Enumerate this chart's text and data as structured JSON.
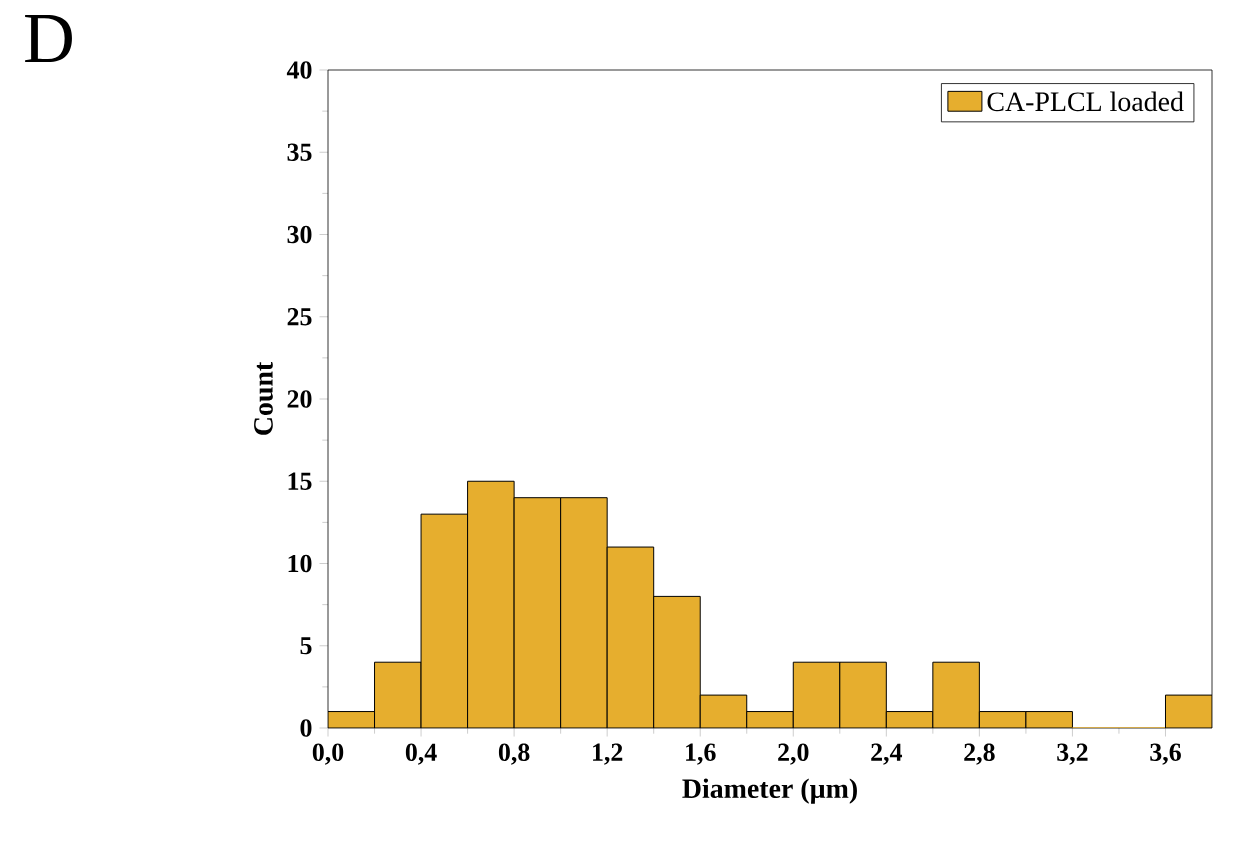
{
  "chart_data": {
    "type": "histogram",
    "xlabel": "Diameter (µm)",
    "ylabel": "Count",
    "annotations": [
      "D"
    ],
    "bins": [
      0,
      0.2,
      0.4,
      0.6,
      0.8,
      1.0,
      1.2,
      1.4,
      1.6,
      1.8,
      2.0,
      2.2,
      2.4,
      2.6,
      2.8,
      3.0,
      3.2,
      3.4,
      3.6,
      3.8
    ],
    "series": [
      {
        "name": "CA-PLCL loaded",
        "color": "#e6ae2e",
        "values": [
          1,
          4,
          13,
          15,
          14,
          14,
          11,
          8,
          2,
          1,
          4,
          4,
          1,
          4,
          1,
          1,
          0,
          0,
          2
        ]
      }
    ],
    "xlim": [
      0,
      3.8
    ],
    "xticks": [
      {
        "value": 0,
        "label": "0,0"
      },
      {
        "value": 0.4,
        "label": "0,4"
      },
      {
        "value": 0.8,
        "label": "0,8"
      },
      {
        "value": 1.2,
        "label": "1,2"
      },
      {
        "value": 1.6,
        "label": "1,6"
      },
      {
        "value": 2.0,
        "label": "2,0"
      },
      {
        "value": 2.4,
        "label": "2,4"
      },
      {
        "value": 2.8,
        "label": "2,8"
      },
      {
        "value": 3.2,
        "label": "3,2"
      },
      {
        "value": 3.6,
        "label": "3,6"
      }
    ],
    "ylim": [
      0,
      40
    ],
    "yticks": [
      0,
      5,
      10,
      15,
      20,
      25,
      30,
      35,
      40
    ],
    "legend": "top right"
  }
}
